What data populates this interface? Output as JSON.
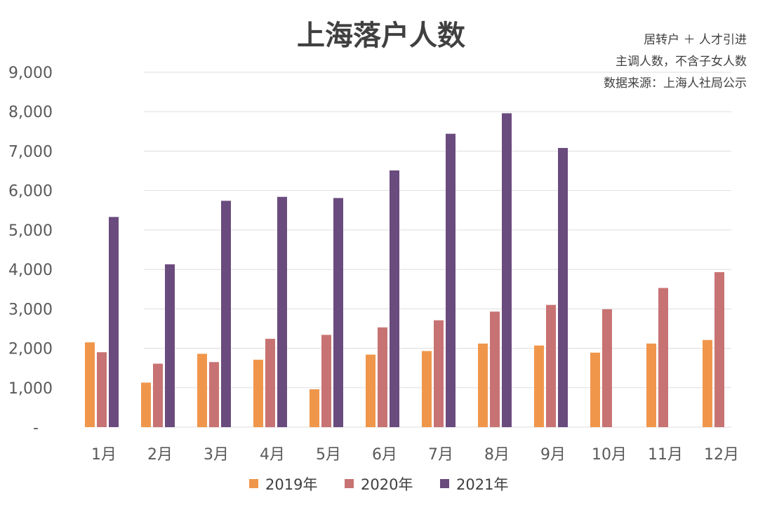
{
  "chart_data": {
    "type": "bar",
    "title": "上海落户人数",
    "notes": [
      "居转户 ＋ 人才引进",
      "主调人数，不含子女人数",
      "数据来源：上海人社局公示"
    ],
    "categories": [
      "1月",
      "2月",
      "3月",
      "4月",
      "5月",
      "6月",
      "7月",
      "8月",
      "9月",
      "10月",
      "11月",
      "12月"
    ],
    "series": [
      {
        "name": "2019年",
        "color": "#F0964B",
        "values": [
          2150,
          1130,
          1860,
          1710,
          960,
          1840,
          1930,
          2120,
          2070,
          1890,
          2120,
          2210
        ]
      },
      {
        "name": "2020年",
        "color": "#C87373",
        "values": [
          1900,
          1610,
          1650,
          2240,
          2340,
          2530,
          2710,
          2930,
          3100,
          2990,
          3530,
          3930
        ]
      },
      {
        "name": "2021年",
        "color": "#6A4B7E",
        "values": [
          5330,
          4130,
          5740,
          5840,
          5810,
          6510,
          7440,
          7960,
          7080,
          null,
          null,
          null
        ]
      }
    ],
    "y_ticks": [
      "-",
      "1,000",
      "2,000",
      "3,000",
      "4,000",
      "5,000",
      "6,000",
      "7,000",
      "8,000",
      "9,000"
    ],
    "ylim": [
      0,
      9000
    ],
    "grid": true,
    "legend_position": "bottom"
  }
}
